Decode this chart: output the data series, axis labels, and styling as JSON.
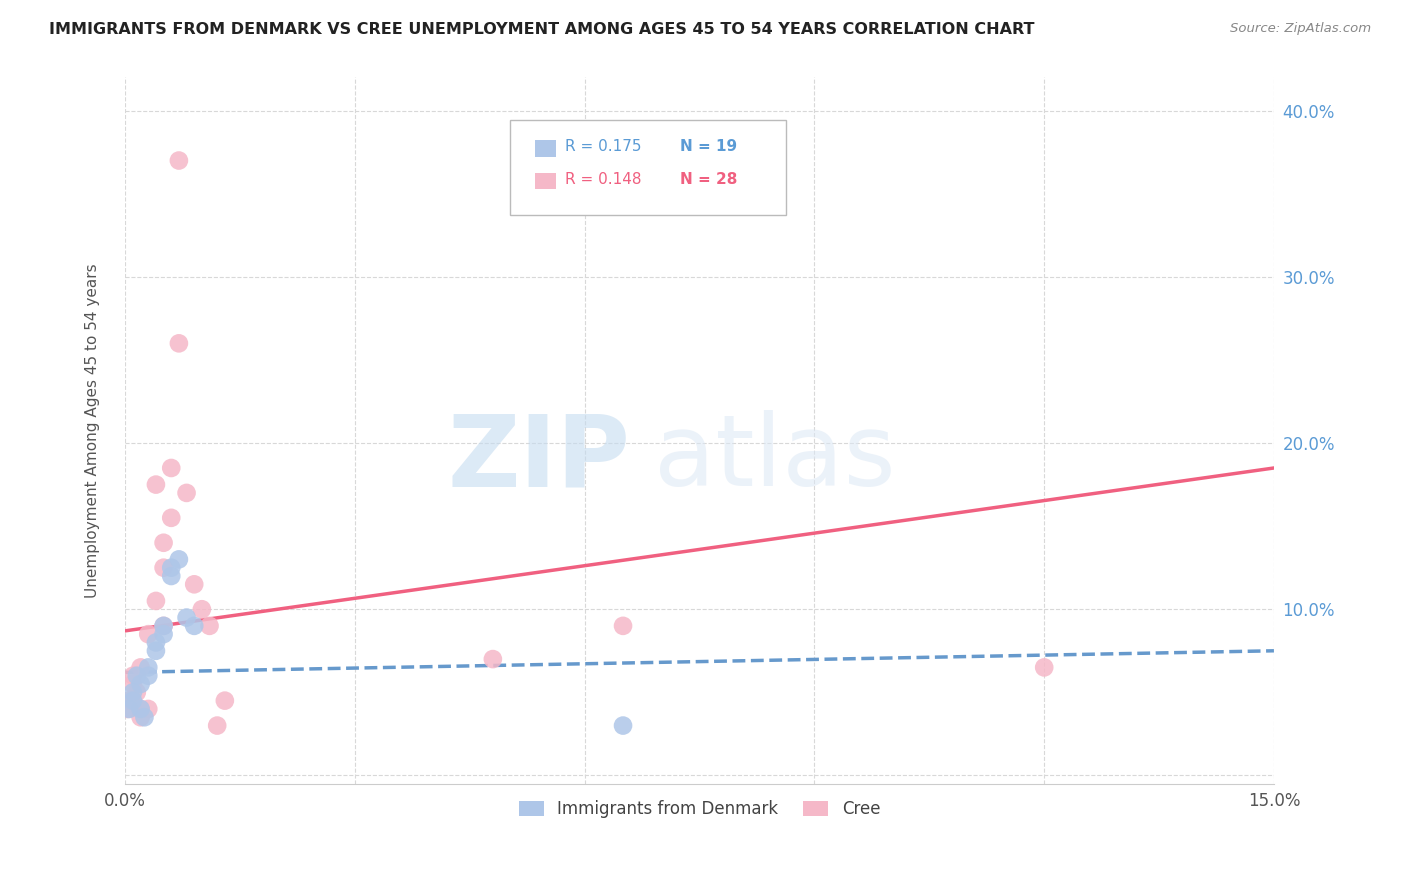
{
  "title": "IMMIGRANTS FROM DENMARK VS CREE UNEMPLOYMENT AMONG AGES 45 TO 54 YEARS CORRELATION CHART",
  "source": "Source: ZipAtlas.com",
  "ylabel": "Unemployment Among Ages 45 to 54 years",
  "xlim": [
    0.0,
    0.15
  ],
  "ylim": [
    -0.005,
    0.42
  ],
  "legend_blue_r": "R = 0.175",
  "legend_blue_n": "N = 19",
  "legend_pink_r": "R = 0.148",
  "legend_pink_n": "N = 28",
  "label_blue": "Immigrants from Denmark",
  "label_pink": "Cree",
  "blue_color": "#aec6e8",
  "pink_color": "#f5b8c8",
  "blue_line_color": "#6699cc",
  "pink_line_color": "#f06080",
  "blue_line_x0": 0.0,
  "blue_line_x1": 0.15,
  "blue_line_y0": 0.062,
  "blue_line_y1": 0.075,
  "pink_line_x0": 0.0,
  "pink_line_x1": 0.15,
  "pink_line_y0": 0.087,
  "pink_line_y1": 0.185,
  "blue_scatter_x": [
    0.0005,
    0.001,
    0.001,
    0.0015,
    0.002,
    0.002,
    0.0025,
    0.003,
    0.003,
    0.004,
    0.004,
    0.005,
    0.005,
    0.006,
    0.006,
    0.007,
    0.008,
    0.009,
    0.065
  ],
  "blue_scatter_y": [
    0.04,
    0.045,
    0.05,
    0.06,
    0.055,
    0.04,
    0.035,
    0.065,
    0.06,
    0.08,
    0.075,
    0.09,
    0.085,
    0.12,
    0.125,
    0.13,
    0.095,
    0.09,
    0.03
  ],
  "pink_scatter_x": [
    0.0003,
    0.0005,
    0.001,
    0.001,
    0.0015,
    0.002,
    0.002,
    0.002,
    0.003,
    0.003,
    0.004,
    0.004,
    0.005,
    0.005,
    0.005,
    0.006,
    0.006,
    0.007,
    0.007,
    0.008,
    0.009,
    0.01,
    0.011,
    0.012,
    0.013,
    0.048,
    0.065,
    0.12
  ],
  "pink_scatter_y": [
    0.04,
    0.045,
    0.06,
    0.055,
    0.05,
    0.065,
    0.035,
    0.04,
    0.085,
    0.04,
    0.105,
    0.175,
    0.125,
    0.14,
    0.09,
    0.155,
    0.185,
    0.26,
    0.37,
    0.17,
    0.115,
    0.1,
    0.09,
    0.03,
    0.045,
    0.07,
    0.09,
    0.065
  ],
  "watermark_zip": "ZIP",
  "watermark_atlas": "atlas",
  "background_color": "#ffffff",
  "grid_color": "#d8d8d8"
}
